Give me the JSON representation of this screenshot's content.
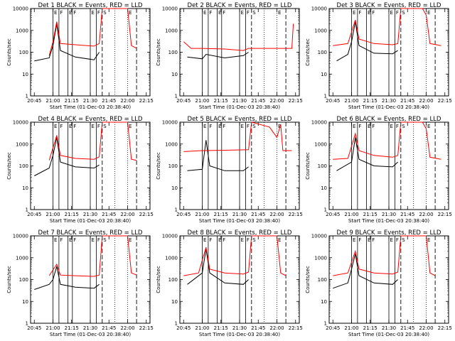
{
  "axes": {
    "xlabel": "Start Time (01-Dec-03 20:38:40)",
    "ylabel": "Counts/sec",
    "xticks": [
      "20:45",
      "21:00",
      "21:15",
      "21:30",
      "21:45",
      "22:00",
      "22:15"
    ],
    "yticks": [
      "1",
      "10",
      "100",
      "1000",
      "10000"
    ]
  },
  "colors": {
    "events": "#000000",
    "lld": "#ff0000",
    "axis": "#000000"
  },
  "chart_data": [
    {
      "type": "line",
      "title": "Det 1 BLACK = Events, RED = LLD",
      "xlabel": "Start Time (01-Dec-03 20:38:40)",
      "ylabel": "Counts/sec",
      "ylim": [
        1,
        10000
      ],
      "yscale": "log",
      "series": [
        {
          "name": "Events",
          "values": [
            [
              20.75,
              40
            ],
            [
              20.95,
              55
            ],
            [
              21.0,
              200
            ],
            [
              21.05,
              2000
            ],
            [
              21.1,
              120
            ],
            [
              21.3,
              60
            ],
            [
              21.55,
              45
            ],
            [
              21.62,
              100
            ]
          ]
        },
        {
          "name": "LLD",
          "values": [
            [
              20.95,
              70
            ],
            [
              21.0,
              300
            ],
            [
              21.05,
              2500
            ],
            [
              21.1,
              250
            ],
            [
              21.3,
              220
            ],
            [
              21.55,
              190
            ],
            [
              21.62,
              250
            ],
            [
              21.66,
              10000
            ],
            [
              22.0,
              10000
            ],
            [
              22.05,
              200
            ],
            [
              22.12,
              150
            ]
          ]
        }
      ]
    },
    {
      "type": "line",
      "title": "Det 2 BLACK = Events, RED = LLD",
      "xlabel": "Start Time (01-Dec-03 20:38:40)",
      "ylabel": "Counts/sec",
      "ylim": [
        1,
        10000
      ],
      "yscale": "log",
      "series": [
        {
          "name": "Events",
          "values": [
            [
              20.8,
              60
            ],
            [
              21.0,
              50
            ],
            [
              21.05,
              80
            ],
            [
              21.3,
              55
            ],
            [
              21.55,
              70
            ],
            [
              21.62,
              100
            ]
          ]
        },
        {
          "name": "LLD",
          "values": [
            [
              20.75,
              300
            ],
            [
              20.85,
              150
            ],
            [
              21.0,
              150
            ],
            [
              21.3,
              140
            ],
            [
              21.55,
              120
            ],
            [
              21.62,
              150
            ],
            [
              22.2,
              150
            ],
            [
              22.22,
              2000
            ]
          ]
        }
      ]
    },
    {
      "type": "line",
      "title": "Det 3 BLACK = Events, RED = LLD",
      "xlabel": "Start Time (01-Dec-03 20:38:40)",
      "ylabel": "Counts/sec",
      "ylim": [
        1,
        10000
      ],
      "yscale": "log",
      "series": [
        {
          "name": "Events",
          "values": [
            [
              20.8,
              40
            ],
            [
              20.95,
              80
            ],
            [
              21.0,
              300
            ],
            [
              21.05,
              2500
            ],
            [
              21.1,
              200
            ],
            [
              21.3,
              90
            ],
            [
              21.55,
              85
            ],
            [
              21.62,
              120
            ]
          ]
        },
        {
          "name": "LLD",
          "values": [
            [
              20.75,
              200
            ],
            [
              20.95,
              250
            ],
            [
              21.05,
              3000
            ],
            [
              21.1,
              400
            ],
            [
              21.3,
              250
            ],
            [
              21.55,
              220
            ],
            [
              21.62,
              250
            ],
            [
              21.66,
              10000
            ],
            [
              21.95,
              10000
            ],
            [
              22.0,
              5000
            ],
            [
              22.05,
              250
            ],
            [
              22.2,
              200
            ]
          ]
        }
      ]
    },
    {
      "type": "line",
      "title": "Det 4 BLACK = Events, RED = LLD",
      "xlabel": "Start Time (01-Dec-03 20:38:40)",
      "ylabel": "Counts/sec",
      "ylim": [
        1,
        10000
      ],
      "yscale": "log",
      "series": [
        {
          "name": "Events",
          "values": [
            [
              20.75,
              35
            ],
            [
              20.95,
              80
            ],
            [
              21.0,
              300
            ],
            [
              21.05,
              2000
            ],
            [
              21.1,
              150
            ],
            [
              21.3,
              90
            ],
            [
              21.55,
              80
            ],
            [
              21.62,
              110
            ]
          ]
        },
        {
          "name": "LLD",
          "values": [
            [
              20.95,
              180
            ],
            [
              21.05,
              2500
            ],
            [
              21.1,
              300
            ],
            [
              21.3,
              220
            ],
            [
              21.55,
              200
            ],
            [
              21.62,
              260
            ],
            [
              21.66,
              10000
            ],
            [
              22.0,
              10000
            ],
            [
              22.05,
              200
            ],
            [
              22.12,
              180
            ]
          ]
        }
      ]
    },
    {
      "type": "line",
      "title": "Det 5 BLACK = Events, RED = LLD",
      "xlabel": "Start Time (01-Dec-03 20:38:40)",
      "ylabel": "Counts/sec",
      "ylim": [
        1,
        10000
      ],
      "yscale": "log",
      "series": [
        {
          "name": "Events",
          "values": [
            [
              20.8,
              60
            ],
            [
              21.0,
              70
            ],
            [
              21.05,
              1500
            ],
            [
              21.1,
              100
            ],
            [
              21.3,
              60
            ],
            [
              21.55,
              60
            ],
            [
              21.62,
              90
            ]
          ]
        },
        {
          "name": "LLD",
          "values": [
            [
              20.75,
              450
            ],
            [
              21.0,
              500
            ],
            [
              21.3,
              520
            ],
            [
              21.62,
              550
            ],
            [
              21.66,
              10000
            ],
            [
              21.9,
              6000
            ],
            [
              22.0,
              2000
            ],
            [
              22.05,
              8000
            ],
            [
              22.08,
              500
            ],
            [
              22.2,
              500
            ]
          ]
        }
      ]
    },
    {
      "type": "line",
      "title": "Det 6 BLACK = Events, RED = LLD",
      "xlabel": "Start Time (01-Dec-03 20:38:40)",
      "ylabel": "Counts/sec",
      "ylim": [
        1,
        10000
      ],
      "yscale": "log",
      "series": [
        {
          "name": "Events",
          "values": [
            [
              20.8,
              60
            ],
            [
              21.0,
              150
            ],
            [
              21.05,
              2000
            ],
            [
              21.1,
              200
            ],
            [
              21.3,
              100
            ],
            [
              21.55,
              90
            ],
            [
              21.62,
              150
            ]
          ]
        },
        {
          "name": "LLD",
          "values": [
            [
              20.75,
              200
            ],
            [
              20.95,
              220
            ],
            [
              21.05,
              3000
            ],
            [
              21.1,
              500
            ],
            [
              21.3,
              300
            ],
            [
              21.55,
              250
            ],
            [
              21.62,
              300
            ],
            [
              21.66,
              10000
            ],
            [
              21.95,
              10000
            ],
            [
              22.0,
              5000
            ],
            [
              22.05,
              250
            ],
            [
              22.2,
              200
            ]
          ]
        }
      ]
    },
    {
      "type": "line",
      "title": "Det 7 BLACK = Events, RED = LLD",
      "xlabel": "Start Time (01-Dec-03 20:38:40)",
      "ylabel": "Counts/sec",
      "ylim": [
        1,
        10000
      ],
      "yscale": "log",
      "series": [
        {
          "name": "Events",
          "values": [
            [
              20.75,
              35
            ],
            [
              20.95,
              60
            ],
            [
              21.0,
              100
            ],
            [
              21.05,
              400
            ],
            [
              21.1,
              60
            ],
            [
              21.3,
              45
            ],
            [
              21.55,
              40
            ],
            [
              21.62,
              60
            ]
          ]
        },
        {
          "name": "LLD",
          "values": [
            [
              20.95,
              150
            ],
            [
              21.05,
              500
            ],
            [
              21.1,
              160
            ],
            [
              21.3,
              150
            ],
            [
              21.55,
              140
            ],
            [
              21.62,
              160
            ],
            [
              21.66,
              10000
            ],
            [
              22.0,
              10000
            ],
            [
              22.05,
              200
            ],
            [
              22.12,
              160
            ]
          ]
        }
      ]
    },
    {
      "type": "line",
      "title": "Det 8 BLACK = Events, RED = LLD",
      "xlabel": "Start Time (01-Dec-03 20:38:40)",
      "ylabel": "Counts/sec",
      "ylim": [
        1,
        10000
      ],
      "yscale": "log",
      "series": [
        {
          "name": "Events",
          "values": [
            [
              20.8,
              60
            ],
            [
              21.0,
              200
            ],
            [
              21.05,
              2500
            ],
            [
              21.1,
              200
            ],
            [
              21.3,
              70
            ],
            [
              21.55,
              60
            ],
            [
              21.62,
              100
            ]
          ]
        },
        {
          "name": "LLD",
          "values": [
            [
              20.75,
              150
            ],
            [
              20.95,
              200
            ],
            [
              21.05,
              3000
            ],
            [
              21.1,
              300
            ],
            [
              21.3,
              200
            ],
            [
              21.55,
              180
            ],
            [
              21.62,
              220
            ],
            [
              21.66,
              10000
            ],
            [
              22.0,
              10000
            ],
            [
              22.05,
              200
            ],
            [
              22.12,
              150
            ]
          ]
        }
      ]
    },
    {
      "type": "line",
      "title": "Det 9 BLACK = Events, RED = LLD",
      "xlabel": "Start Time (01-Dec-03 20:38:40)",
      "ylabel": "Counts/sec",
      "ylim": [
        1,
        10000
      ],
      "yscale": "log",
      "series": [
        {
          "name": "Events",
          "values": [
            [
              20.75,
              40
            ],
            [
              20.95,
              70
            ],
            [
              21.0,
              300
            ],
            [
              21.05,
              1500
            ],
            [
              21.1,
              150
            ],
            [
              21.3,
              70
            ],
            [
              21.55,
              60
            ],
            [
              21.62,
              100
            ]
          ]
        },
        {
          "name": "LLD",
          "values": [
            [
              20.75,
              150
            ],
            [
              20.95,
              200
            ],
            [
              21.05,
              2000
            ],
            [
              21.1,
              300
            ],
            [
              21.3,
              200
            ],
            [
              21.55,
              180
            ],
            [
              21.62,
              220
            ],
            [
              21.66,
              10000
            ],
            [
              22.0,
              10000
            ],
            [
              22.05,
              200
            ],
            [
              22.12,
              150
            ]
          ]
        }
      ]
    }
  ],
  "markers": {
    "solid_lines": [
      21.0,
      21.08,
      21.2,
      21.26,
      21.5,
      21.58
    ],
    "dashed_lines": [
      21.66,
      22.12
    ],
    "dotted_lines": [
      21.83,
      22.0
    ],
    "letter_labels": [
      {
        "x": 21.0,
        "text": "E"
      },
      {
        "x": 21.08,
        "text": "F"
      },
      {
        "x": 21.2,
        "text": "E"
      },
      {
        "x": 21.26,
        "text": "F"
      },
      {
        "x": 21.5,
        "text": "E"
      },
      {
        "x": 21.58,
        "text": "F"
      },
      {
        "x": 21.66,
        "text": "S"
      },
      {
        "x": 22.0,
        "text": "E"
      }
    ]
  }
}
